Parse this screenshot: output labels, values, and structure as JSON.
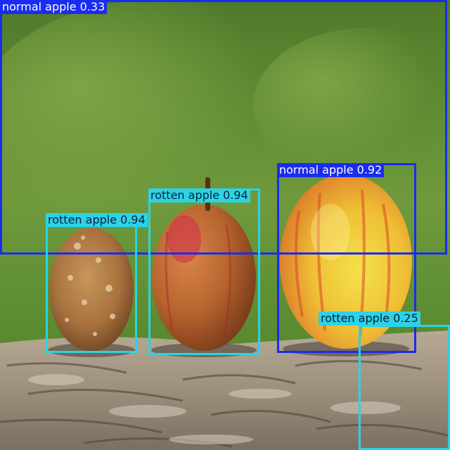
{
  "detections": [
    {
      "label": "normal apple",
      "score": "0.33",
      "color": "#1a2cf0",
      "text_color": "#ffffff"
    },
    {
      "label": "rotten apple",
      "score": "0.94",
      "color": "#2bd3e6",
      "text_color": "#10203a"
    },
    {
      "label": "rotten apple",
      "score": "0.94",
      "color": "#2bd3e6",
      "text_color": "#10203a"
    },
    {
      "label": "normal apple",
      "score": "0.92",
      "color": "#1a2cf0",
      "text_color": "#ffffff"
    },
    {
      "label": "rotten apple",
      "score": "0.25",
      "color": "#2bd3e6",
      "text_color": "#10203a"
    }
  ]
}
